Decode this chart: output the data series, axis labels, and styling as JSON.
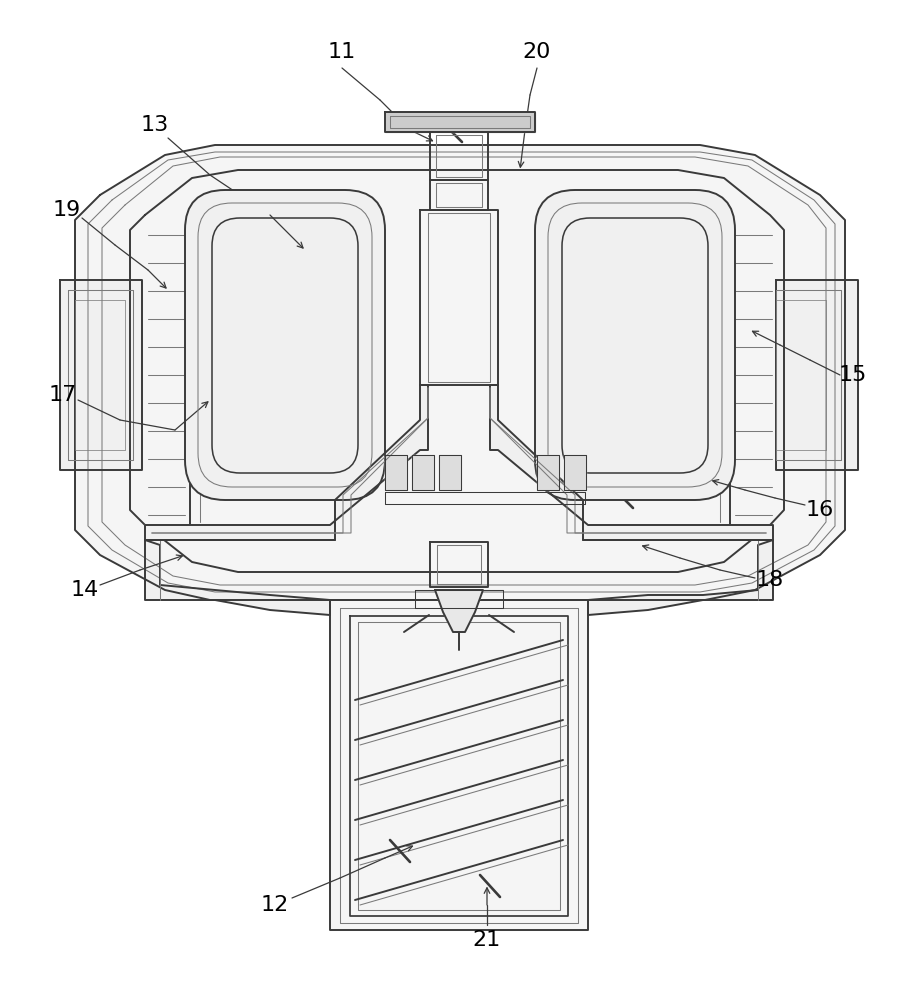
{
  "bg_color": "#ffffff",
  "lc": "#3a3a3a",
  "lc2": "#7a7a7a",
  "lw": 1.4,
  "lw2": 0.75,
  "figsize": [
    9.18,
    10.0
  ],
  "dpi": 100
}
